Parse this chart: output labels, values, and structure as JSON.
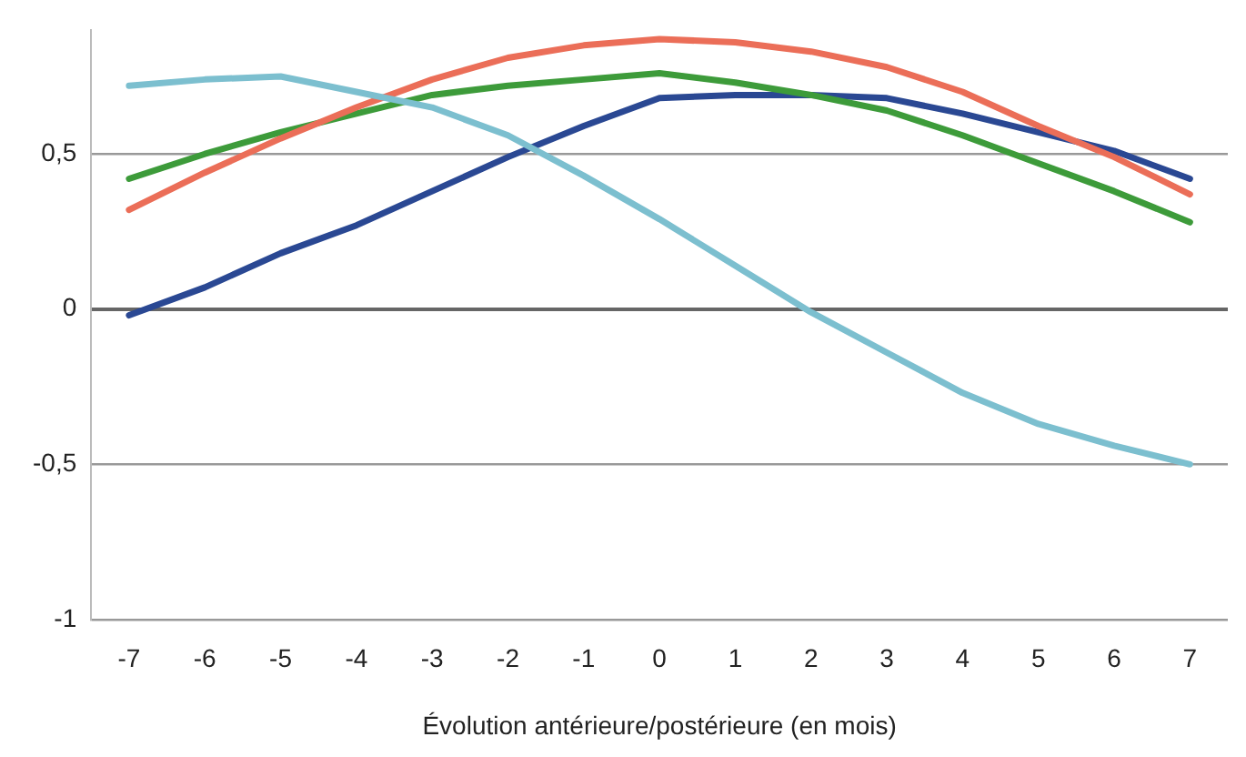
{
  "chart_data": {
    "type": "line",
    "xlabel": "Évolution antérieure/postérieure (en mois)",
    "categories": [
      "-7",
      "-6",
      "-5",
      "-4",
      "-3",
      "-2",
      "-1",
      "0",
      "1",
      "2",
      "3",
      "4",
      "5",
      "6",
      "7"
    ],
    "series": [
      {
        "color": "#7cbfcf",
        "values": [
          0.72,
          0.74,
          0.75,
          0.7,
          0.65,
          0.56,
          0.43,
          0.29,
          0.14,
          -0.01,
          -0.14,
          -0.27,
          -0.37,
          -0.44,
          -0.5
        ]
      },
      {
        "color": "#eb6e58",
        "values": [
          0.32,
          0.44,
          0.55,
          0.65,
          0.74,
          0.81,
          0.85,
          0.87,
          0.86,
          0.83,
          0.78,
          0.7,
          0.59,
          0.49,
          0.37
        ]
      },
      {
        "color": "#3d9b3a",
        "values": [
          0.42,
          0.5,
          0.57,
          0.63,
          0.69,
          0.72,
          0.74,
          0.76,
          0.73,
          0.69,
          0.64,
          0.56,
          0.47,
          0.38,
          0.28
        ]
      },
      {
        "color": "#2a4893",
        "values": [
          -0.02,
          0.07,
          0.18,
          0.27,
          0.38,
          0.49,
          0.59,
          0.68,
          0.69,
          0.69,
          0.68,
          0.63,
          0.57,
          0.51,
          0.42
        ]
      }
    ],
    "ylim": [
      -1,
      0.9
    ],
    "yticks": [
      {
        "value": -1,
        "label": "-1"
      },
      {
        "value": -0.5,
        "label": "-0,5"
      },
      {
        "value": 0,
        "label": "0"
      },
      {
        "value": 0.5,
        "label": "0,5"
      }
    ],
    "grid": "y",
    "legend": false,
    "marker": "none",
    "line_style": "solid"
  }
}
